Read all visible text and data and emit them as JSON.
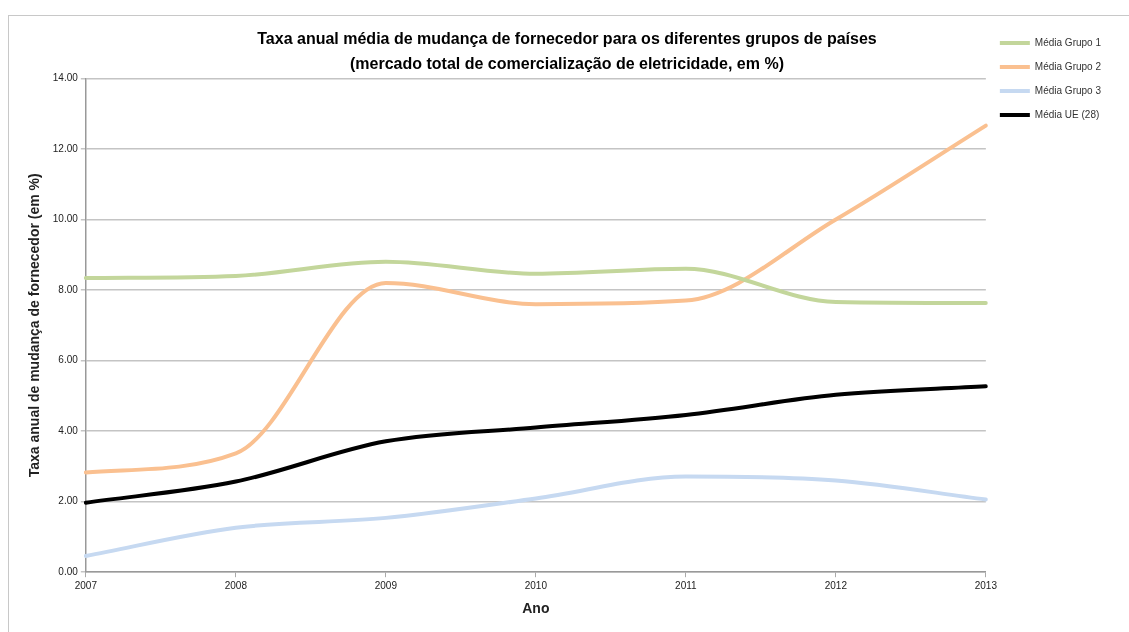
{
  "chart_data": {
    "type": "line",
    "title": "Taxa anual média de mudança de fornecedor para os diferentes grupos de países",
    "subtitle": "(mercado total de comercialização de eletricidade, em %)",
    "xlabel": "Ano",
    "ylabel": "Taxa anual de mudança de fornecedor (em %)",
    "categories": [
      "2007",
      "2008",
      "2009",
      "2010",
      "2011",
      "2012",
      "2013"
    ],
    "series": [
      {
        "name": "Média Grupo 1",
        "color": "#c3d69b",
        "values": [
          8.34,
          8.4,
          8.8,
          8.46,
          8.6,
          7.66,
          7.63
        ]
      },
      {
        "name": "Média Grupo 2",
        "color": "#fac090",
        "values": [
          2.83,
          3.37,
          8.2,
          7.6,
          7.7,
          10.0,
          12.66
        ]
      },
      {
        "name": "Média Grupo 3",
        "color": "#c6d9f1",
        "values": [
          0.46,
          1.26,
          1.54,
          2.09,
          2.71,
          2.6,
          2.06
        ]
      },
      {
        "name": "Média UE (28)",
        "color": "#000000",
        "values": [
          1.97,
          2.57,
          3.71,
          4.1,
          4.46,
          5.03,
          5.27
        ]
      }
    ],
    "ylim": [
      0,
      14
    ],
    "yticks": [
      {
        "value": 0,
        "label": "0.00"
      },
      {
        "value": 2,
        "label": "2.00"
      },
      {
        "value": 4,
        "label": "4.00"
      },
      {
        "value": 6,
        "label": "6.00"
      },
      {
        "value": 8,
        "label": "8.00"
      },
      {
        "value": 10,
        "label": "10.00"
      },
      {
        "value": 12,
        "label": "12.00"
      },
      {
        "value": 14,
        "label": "14.00"
      }
    ],
    "grid": "y",
    "legend": "top right",
    "marker": "none",
    "line_style": "solid"
  }
}
